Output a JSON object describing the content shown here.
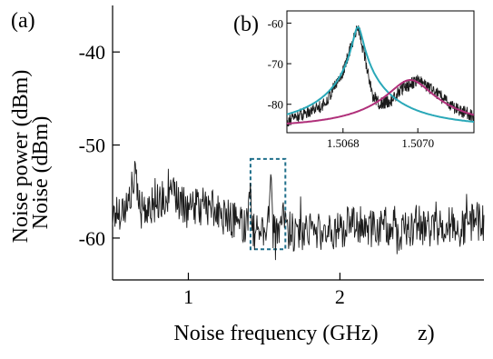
{
  "chart_data": [
    {
      "panel": "(a)",
      "type": "line",
      "xlabel": "Noise frequency (GHz)",
      "ylabel": "Noise power (dBm)",
      "ghost_labels": {
        "ylabel_fragment": "Noise (dBm)",
        "xlabel_fragment": "z)"
      },
      "xlim": [
        0.5,
        2.95
      ],
      "ylim": [
        -64.5,
        -35
      ],
      "xticks": [
        1,
        2
      ],
      "xtick_labels": [
        "1",
        "2"
      ],
      "yticks": [
        -40,
        -50,
        -60
      ],
      "ytick_labels": [
        "-40",
        "-50",
        "-60"
      ],
      "grid": false,
      "highlight_box": {
        "x": [
          1.41,
          1.64
        ],
        "y": [
          -61.2,
          -51.5
        ],
        "style": "dashed",
        "color": "#1f6f8b"
      },
      "series": [
        {
          "color": "#1a1a1a",
          "x": [
            0.5,
            0.6,
            0.65,
            0.7,
            0.8,
            0.9,
            1.0,
            1.1,
            1.2,
            1.3,
            1.38,
            1.41,
            1.43,
            1.5,
            1.53,
            1.545,
            1.56,
            1.6,
            1.63,
            1.7,
            1.8,
            1.9,
            2.0,
            2.1,
            2.2,
            2.3,
            2.4,
            2.5,
            2.6,
            2.7,
            2.8,
            2.9,
            2.95
          ],
          "y": [
            -57.5,
            -56.5,
            -53.5,
            -57,
            -56,
            -55.5,
            -57,
            -56.5,
            -57.5,
            -58,
            -58.5,
            -56,
            -59.5,
            -59,
            -58,
            -52.5,
            -59.5,
            -59.5,
            -58,
            -59.5,
            -59,
            -59.5,
            -59,
            -58.5,
            -59,
            -58.5,
            -59.5,
            -58.5,
            -59,
            -58.5,
            -59,
            -58,
            -59
          ]
        }
      ]
    },
    {
      "panel": "(b)",
      "type": "line",
      "xlim": [
        1.50665,
        1.50715
      ],
      "ylim": [
        -87,
        -57
      ],
      "xticks": [
        1.5068,
        1.507
      ],
      "xtick_labels": [
        "1.5068",
        "1.5070"
      ],
      "yticks": [
        -60,
        -70,
        -80
      ],
      "ytick_labels": [
        "-60",
        "-70",
        "-80"
      ],
      "grid": false,
      "series": [
        {
          "kind": "measured",
          "color": "#1a1a1a",
          "x": [
            1.50665,
            1.50675,
            1.5068,
            1.50684,
            1.50688,
            1.5069,
            1.50693,
            1.50696,
            1.50698,
            1.507,
            1.50703,
            1.50706,
            1.5071,
            1.50715
          ],
          "y": [
            -84,
            -80,
            -72,
            -60.5,
            -78,
            -80,
            -79,
            -76,
            -75,
            -74,
            -76,
            -78,
            -81,
            -83
          ]
        },
        {
          "kind": "fit",
          "color": "#2aa8b8",
          "type": "lorentzian",
          "center": 1.50684,
          "peak": -61,
          "floor": -86,
          "hwhm": 1.2e-05
        },
        {
          "kind": "fit",
          "color": "#b0307a",
          "type": "lorentzian",
          "center": 1.50698,
          "peak": -74.3,
          "floor": -86,
          "hwhm": 5e-05
        }
      ]
    }
  ]
}
